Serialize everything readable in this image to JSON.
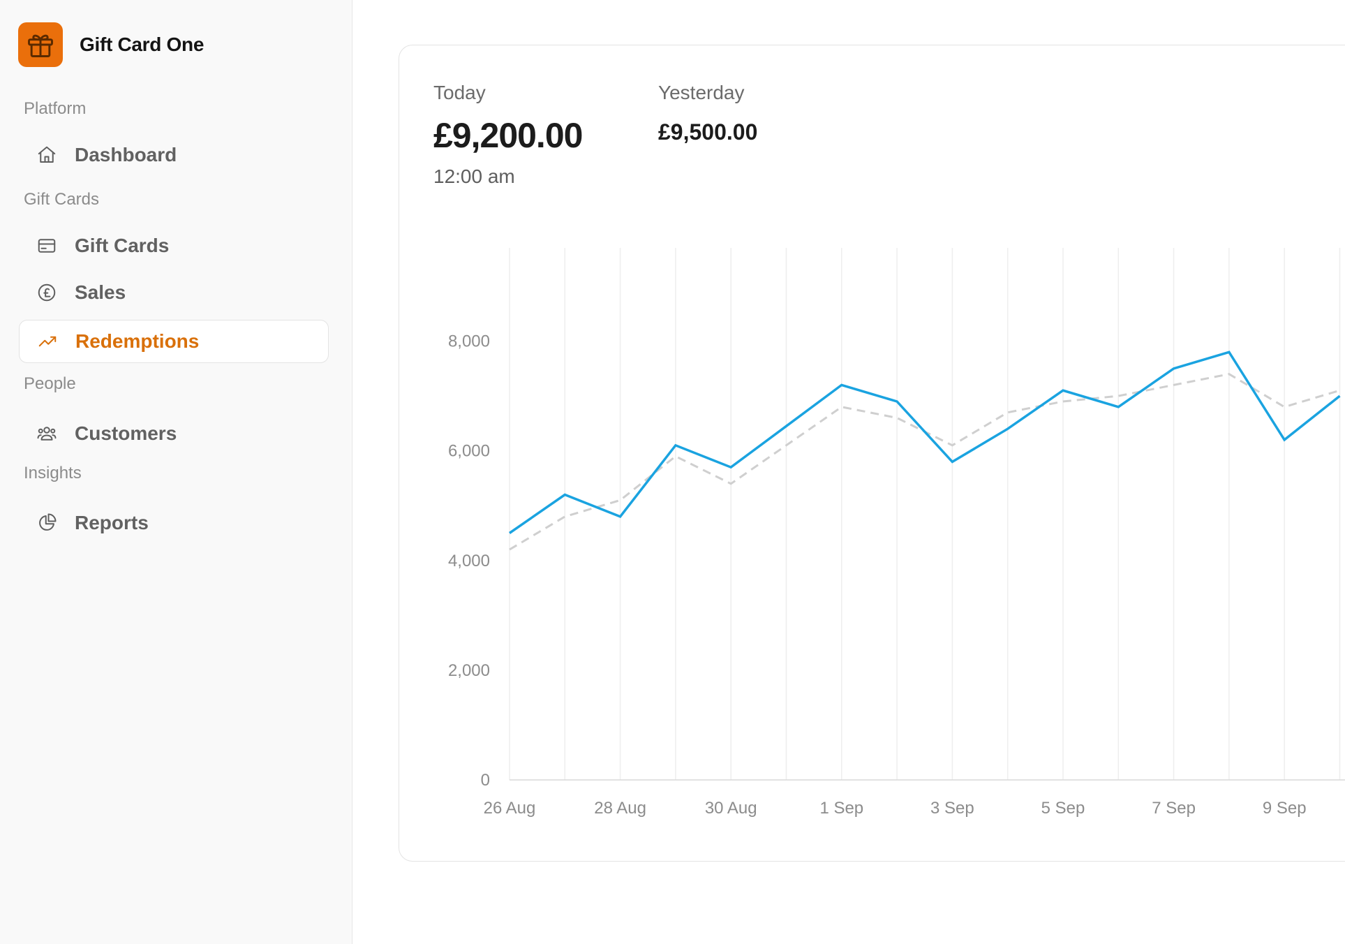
{
  "app": {
    "name": "Gift Card One"
  },
  "sidebar": {
    "sections": [
      {
        "title": "Platform"
      },
      {
        "title": "Gift Cards"
      },
      {
        "title": "People"
      },
      {
        "title": "Insights"
      }
    ],
    "items": [
      {
        "label": "Dashboard",
        "icon": "home-icon"
      },
      {
        "label": "Gift Cards",
        "icon": "credit-card-icon"
      },
      {
        "label": "Sales",
        "icon": "pound-circle-icon"
      },
      {
        "label": "Redemptions",
        "icon": "trending-up-icon",
        "active": true
      },
      {
        "label": "Customers",
        "icon": "users-icon"
      },
      {
        "label": "Reports",
        "icon": "pie-chart-icon"
      }
    ]
  },
  "stats": {
    "today_label": "Today",
    "today_value": "£9,200.00",
    "today_time": "12:00 am",
    "yesterday_label": "Yesterday",
    "yesterday_value": "£9,500.00"
  },
  "colors": {
    "accent": "#ea6f0b",
    "active_text": "#d9700a",
    "today_line": "#1aa3e0",
    "yesterday_line": "#cfcfcf"
  },
  "chart_data": {
    "type": "line",
    "x": [
      "26 Aug",
      "27 Aug",
      "28 Aug",
      "29 Aug",
      "30 Aug",
      "31 Aug",
      "1 Sep",
      "2 Sep",
      "3 Sep",
      "4 Sep",
      "5 Sep",
      "6 Sep",
      "7 Sep",
      "8 Sep",
      "9 Sep",
      "10 Sep"
    ],
    "x_tick_labels": [
      "26 Aug",
      "28 Aug",
      "30 Aug",
      "1 Sep",
      "3 Sep",
      "5 Sep",
      "7 Sep",
      "9 Sep"
    ],
    "y_ticks": [
      "0",
      "2,000",
      "4,000",
      "6,000",
      "8,000"
    ],
    "ylim": [
      0,
      9700
    ],
    "grid": "vertical",
    "series": [
      {
        "values": [
          4500,
          5200,
          4800,
          6100,
          5700,
          6450,
          7200,
          6900,
          5800,
          6400,
          7100,
          6800,
          7500,
          7800,
          6200,
          7000
        ],
        "style": "solid",
        "color": "#1aa3e0"
      },
      {
        "values": [
          4200,
          4800,
          5100,
          5900,
          5400,
          6100,
          6800,
          6600,
          6100,
          6700,
          6900,
          7000,
          7200,
          7400,
          6800,
          7100
        ],
        "style": "dashed",
        "color": "#cfcfcf"
      }
    ]
  }
}
